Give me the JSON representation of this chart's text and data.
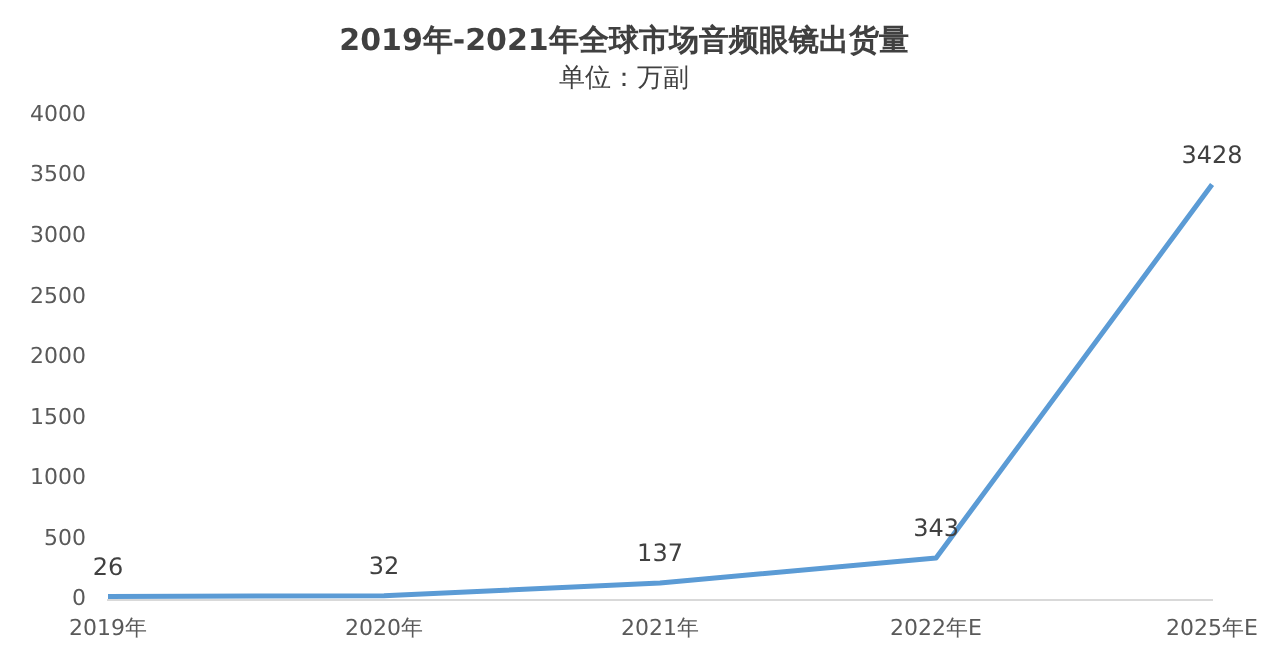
{
  "chart_data": {
    "type": "line",
    "title": "2019年-2021年全球市场音频眼镜出货量",
    "subtitle": "单位：万副",
    "categories": [
      "2019年",
      "2020年",
      "2021年",
      "2022年E",
      "2025年E"
    ],
    "series": [
      {
        "color": "#5b9bd5",
        "values": [
          26,
          32,
          137,
          343,
          3428
        ]
      }
    ],
    "ylim": [
      0,
      4000
    ],
    "yticks": [
      0,
      500,
      1000,
      1500,
      2000,
      2500,
      3000,
      3500,
      4000
    ],
    "data_labels": true,
    "marker": "none",
    "legend": false
  }
}
